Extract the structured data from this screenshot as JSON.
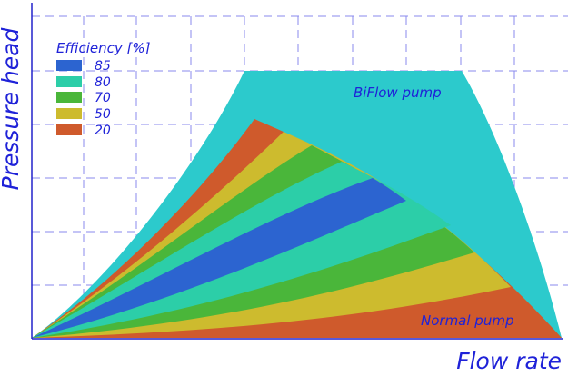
{
  "chart_data": {
    "type": "area",
    "title": "",
    "xlabel": "Flow rate",
    "ylabel": "Pressure head",
    "grid": true,
    "legend": {
      "title": "Efficiency [%]",
      "placement": "top-left",
      "entries": [
        {
          "label": "85",
          "color": "#2c64d0"
        },
        {
          "label": "80",
          "color": "#2ccea8"
        },
        {
          "label": "70",
          "color": "#4ab63a"
        },
        {
          "label": "50",
          "color": "#cdbb2e"
        },
        {
          "label": "20",
          "color": "#cf5a2c"
        }
      ]
    },
    "annotations": [
      {
        "text": "BiFlow pump"
      },
      {
        "text": "Normal pump"
      }
    ],
    "envelope_color": "#2ccacc",
    "grid_color": "#8888ee",
    "axis_color": "#2222cc",
    "label_color": "#1f22d8"
  }
}
